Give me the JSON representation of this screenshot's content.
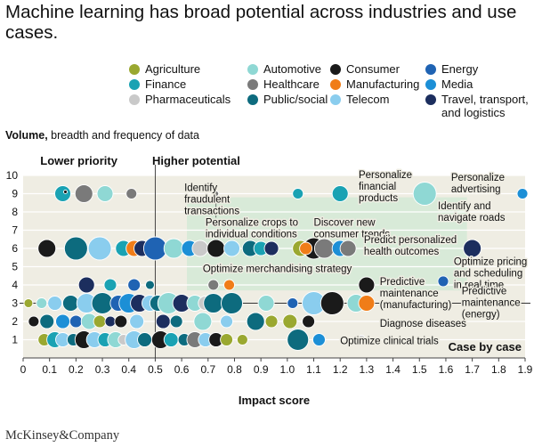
{
  "title": "Machine learning has broad potential across industries and use cases.",
  "footer": "McKinsey&Company",
  "ylabel_bold": "Volume,",
  "ylabel_rest": " breadth and frequency of data",
  "legend": [
    {
      "name": "Agriculture",
      "color": "#9aa830"
    },
    {
      "name": "Automotive",
      "color": "#8fd8d4"
    },
    {
      "name": "Consumer",
      "color": "#1a1a1a"
    },
    {
      "name": "Energy",
      "color": "#1f63b3"
    },
    {
      "name": "Finance",
      "color": "#1aa2b3"
    },
    {
      "name": "Healthcare",
      "color": "#7a7a7a"
    },
    {
      "name": "Manufacturing",
      "color": "#f07d18"
    },
    {
      "name": "Media",
      "color": "#1c8fd6"
    },
    {
      "name": "Pharmaceuticals",
      "color": "#c9c9c9"
    },
    {
      "name": "Public/social",
      "color": "#0d6b7e"
    },
    {
      "name": "Telecom",
      "color": "#8acdee"
    },
    {
      "name": "Travel, transport, and logistics",
      "lines": [
        "Travel, transport,",
        "and logistics"
      ],
      "color": "#1c2e5e"
    }
  ],
  "chart_data": {
    "type": "scatter",
    "title": "Machine learning has broad potential across industries and use cases.",
    "xlabel": "Impact score",
    "ylabel": "Volume, breadth and frequency of data",
    "xlim": [
      0,
      1.9
    ],
    "ylim": [
      0,
      10
    ],
    "xticks": [
      "0",
      "0.1",
      "0.2",
      "0.3",
      "0.4",
      "0.5",
      "0.6",
      "0.7",
      "0.8",
      "0.9",
      "1.0",
      "1.1",
      "1.2",
      "1.3",
      "1.4",
      "1.5",
      "1.6",
      "1.7",
      "1.8",
      "1.9"
    ],
    "yticks": [
      "1",
      "2",
      "3",
      "4",
      "5",
      "6",
      "7",
      "8",
      "9",
      "10"
    ],
    "highlight_region": {
      "x": [
        0.62,
        1.68
      ],
      "y": [
        3.7,
        8.8
      ]
    },
    "divider_x": 0.5,
    "divider_y": 3,
    "quadrants": {
      "top_left": "Lower priority",
      "top_center": "Higher potential",
      "bottom_right": "Case by case"
    },
    "points": [
      {
        "x": 0.08,
        "y": 1,
        "s": 7,
        "c": "Agriculture"
      },
      {
        "x": 0.12,
        "y": 1,
        "s": 9,
        "c": "Finance"
      },
      {
        "x": 0.15,
        "y": 1,
        "s": 8,
        "c": "Telecom"
      },
      {
        "x": 0.19,
        "y": 1,
        "s": 7,
        "c": "Public/social"
      },
      {
        "x": 0.23,
        "y": 1,
        "s": 10,
        "c": "Consumer"
      },
      {
        "x": 0.27,
        "y": 1,
        "s": 9,
        "c": "Telecom"
      },
      {
        "x": 0.31,
        "y": 1,
        "s": 8,
        "c": "Finance"
      },
      {
        "x": 0.35,
        "y": 1,
        "s": 9,
        "c": "Automotive"
      },
      {
        "x": 0.38,
        "y": 1,
        "s": 6,
        "c": "Pharmaceuticals"
      },
      {
        "x": 0.42,
        "y": 1,
        "s": 10,
        "c": "Telecom"
      },
      {
        "x": 0.46,
        "y": 1,
        "s": 8,
        "c": "Public/social"
      },
      {
        "x": 0.52,
        "y": 1,
        "s": 10,
        "c": "Consumer"
      },
      {
        "x": 0.56,
        "y": 1,
        "s": 8,
        "c": "Finance"
      },
      {
        "x": 0.61,
        "y": 1,
        "s": 7,
        "c": "Public/social"
      },
      {
        "x": 0.65,
        "y": 1,
        "s": 9,
        "c": "Healthcare"
      },
      {
        "x": 0.69,
        "y": 1,
        "s": 8,
        "c": "Telecom"
      },
      {
        "x": 0.73,
        "y": 1,
        "s": 8,
        "c": "Consumer"
      },
      {
        "x": 0.77,
        "y": 1,
        "s": 7,
        "c": "Agriculture"
      },
      {
        "x": 0.83,
        "y": 1,
        "s": 6,
        "c": "Agriculture"
      },
      {
        "x": 1.04,
        "y": 1,
        "s": 12,
        "c": "Public/social"
      },
      {
        "x": 1.12,
        "y": 1,
        "s": 7,
        "c": "Media"
      },
      {
        "x": 1.28,
        "y": 1,
        "s": 5,
        "c": "Pharmaceuticals"
      },
      {
        "x": 0.04,
        "y": 2,
        "s": 6,
        "c": "Consumer"
      },
      {
        "x": 0.09,
        "y": 2,
        "s": 8,
        "c": "Public/social"
      },
      {
        "x": 0.15,
        "y": 2,
        "s": 8,
        "c": "Media"
      },
      {
        "x": 0.2,
        "y": 2,
        "s": 7,
        "c": "Energy"
      },
      {
        "x": 0.25,
        "y": 2,
        "s": 9,
        "c": "Automotive"
      },
      {
        "x": 0.29,
        "y": 2,
        "s": 7,
        "c": "Agriculture"
      },
      {
        "x": 0.33,
        "y": 2,
        "s": 6,
        "c": "Travel, transport, and logistics"
      },
      {
        "x": 0.37,
        "y": 2,
        "s": 7,
        "c": "Consumer"
      },
      {
        "x": 0.43,
        "y": 2,
        "s": 8,
        "c": "Telecom"
      },
      {
        "x": 0.53,
        "y": 2,
        "s": 8,
        "c": "Travel, transport, and logistics"
      },
      {
        "x": 0.58,
        "y": 2,
        "s": 7,
        "c": "Public/social"
      },
      {
        "x": 0.68,
        "y": 2,
        "s": 10,
        "c": "Automotive"
      },
      {
        "x": 0.77,
        "y": 2,
        "s": 7,
        "c": "Telecom"
      },
      {
        "x": 0.88,
        "y": 2,
        "s": 10,
        "c": "Public/social"
      },
      {
        "x": 0.94,
        "y": 2,
        "s": 7,
        "c": "Agriculture"
      },
      {
        "x": 1.01,
        "y": 2,
        "s": 8,
        "c": "Agriculture"
      },
      {
        "x": 1.08,
        "y": 2,
        "s": 7,
        "c": "Consumer"
      },
      {
        "x": 0.02,
        "y": 3,
        "s": 5,
        "c": "Agriculture"
      },
      {
        "x": 0.07,
        "y": 3,
        "s": 6,
        "c": "Automotive"
      },
      {
        "x": 0.12,
        "y": 3,
        "s": 8,
        "c": "Telecom"
      },
      {
        "x": 0.18,
        "y": 3,
        "s": 9,
        "c": "Public/social"
      },
      {
        "x": 0.24,
        "y": 3,
        "s": 11,
        "c": "Telecom"
      },
      {
        "x": 0.3,
        "y": 3,
        "s": 12,
        "c": "Public/social"
      },
      {
        "x": 0.36,
        "y": 3,
        "s": 9,
        "c": "Energy"
      },
      {
        "x": 0.4,
        "y": 3,
        "s": 11,
        "c": "Media"
      },
      {
        "x": 0.44,
        "y": 3,
        "s": 10,
        "c": "Travel, transport, and logistics"
      },
      {
        "x": 0.48,
        "y": 3,
        "s": 9,
        "c": "Telecom"
      },
      {
        "x": 0.51,
        "y": 3,
        "s": 9,
        "c": "Public/social"
      },
      {
        "x": 0.55,
        "y": 3,
        "s": 12,
        "c": "Automotive"
      },
      {
        "x": 0.6,
        "y": 3,
        "s": 10,
        "c": "Travel, transport, and logistics"
      },
      {
        "x": 0.65,
        "y": 3,
        "s": 9,
        "c": "Automotive"
      },
      {
        "x": 0.69,
        "y": 3,
        "s": 8,
        "c": "Pharmaceuticals"
      },
      {
        "x": 0.72,
        "y": 3,
        "s": 11,
        "c": "Public/social"
      },
      {
        "x": 0.79,
        "y": 3,
        "s": 12,
        "c": "Public/social"
      },
      {
        "x": 0.92,
        "y": 3,
        "s": 9,
        "c": "Automotive"
      },
      {
        "x": 1.02,
        "y": 3,
        "s": 6,
        "c": "Energy"
      },
      {
        "x": 1.1,
        "y": 3,
        "s": 13,
        "c": "Telecom"
      },
      {
        "x": 1.17,
        "y": 3,
        "s": 13,
        "c": "Consumer"
      },
      {
        "x": 1.26,
        "y": 3,
        "s": 10,
        "c": "Automotive"
      },
      {
        "x": 1.3,
        "y": 3,
        "s": 9,
        "c": "Manufacturing"
      },
      {
        "x": 0.24,
        "y": 4,
        "s": 9,
        "c": "Travel, transport, and logistics"
      },
      {
        "x": 0.33,
        "y": 4,
        "s": 7,
        "c": "Finance"
      },
      {
        "x": 0.42,
        "y": 4,
        "s": 7,
        "c": "Energy"
      },
      {
        "x": 0.48,
        "y": 4,
        "s": 5,
        "c": "Public/social"
      },
      {
        "x": 0.72,
        "y": 4,
        "s": 6,
        "c": "Healthcare"
      },
      {
        "x": 0.78,
        "y": 4,
        "s": 6,
        "c": "Manufacturing"
      },
      {
        "x": 1.3,
        "y": 4,
        "s": 9,
        "c": "Consumer"
      },
      {
        "x": 1.59,
        "y": 4.2,
        "s": 6,
        "c": "Energy"
      },
      {
        "x": 0.09,
        "y": 6,
        "s": 10,
        "c": "Consumer"
      },
      {
        "x": 0.2,
        "y": 6,
        "s": 13,
        "c": "Public/social"
      },
      {
        "x": 0.29,
        "y": 6,
        "s": 13,
        "c": "Telecom"
      },
      {
        "x": 0.38,
        "y": 6,
        "s": 9,
        "c": "Finance"
      },
      {
        "x": 0.42,
        "y": 6,
        "s": 9,
        "c": "Manufacturing"
      },
      {
        "x": 0.45,
        "y": 6,
        "s": 9,
        "c": "Travel, transport, and logistics"
      },
      {
        "x": 0.5,
        "y": 6,
        "s": 13,
        "c": "Energy"
      },
      {
        "x": 0.57,
        "y": 6,
        "s": 11,
        "c": "Automotive"
      },
      {
        "x": 0.63,
        "y": 6,
        "s": 9,
        "c": "Media"
      },
      {
        "x": 0.67,
        "y": 6,
        "s": 9,
        "c": "Pharmaceuticals"
      },
      {
        "x": 0.73,
        "y": 6,
        "s": 10,
        "c": "Consumer"
      },
      {
        "x": 0.79,
        "y": 6,
        "s": 9,
        "c": "Telecom"
      },
      {
        "x": 0.86,
        "y": 6,
        "s": 9,
        "c": "Public/social"
      },
      {
        "x": 0.9,
        "y": 6,
        "s": 8,
        "c": "Finance"
      },
      {
        "x": 0.94,
        "y": 6,
        "s": 8,
        "c": "Travel, transport, and logistics"
      },
      {
        "x": 1.05,
        "y": 6,
        "s": 9,
        "c": "Agriculture"
      },
      {
        "x": 1.1,
        "y": 6,
        "s": 12,
        "c": "Consumer"
      },
      {
        "x": 1.07,
        "y": 6,
        "s": 7,
        "c": "Manufacturing"
      },
      {
        "x": 1.14,
        "y": 6,
        "s": 11,
        "c": "Healthcare"
      },
      {
        "x": 1.2,
        "y": 6,
        "s": 9,
        "c": "Media"
      },
      {
        "x": 1.23,
        "y": 6,
        "s": 9,
        "c": "Healthcare"
      },
      {
        "x": 1.7,
        "y": 6,
        "s": 10,
        "c": "Travel, transport, and logistics"
      },
      {
        "x": 0.15,
        "y": 9,
        "s": 9,
        "c": "Finance"
      },
      {
        "x": 0.16,
        "y": 9.1,
        "s": 2,
        "c": "Consumer"
      },
      {
        "x": 0.23,
        "y": 9,
        "s": 10,
        "c": "Healthcare"
      },
      {
        "x": 0.31,
        "y": 9,
        "s": 9,
        "c": "Automotive"
      },
      {
        "x": 0.41,
        "y": 9,
        "s": 6,
        "c": "Healthcare"
      },
      {
        "x": 0.73,
        "y": 9,
        "s": 3,
        "c": "Healthcare"
      },
      {
        "x": 1.04,
        "y": 9,
        "s": 6,
        "c": "Finance"
      },
      {
        "x": 1.2,
        "y": 9,
        "s": 9,
        "c": "Finance"
      },
      {
        "x": 1.52,
        "y": 9,
        "s": 13,
        "c": "Automotive"
      },
      {
        "x": 1.89,
        "y": 9,
        "s": 6,
        "c": "Media"
      }
    ],
    "annotations": [
      {
        "lines": [
          "Identify",
          "fraudulent",
          "transactions"
        ],
        "px": 0.73,
        "py": 9.0,
        "tx": 0.61,
        "ty": 9.15,
        "dir": "up",
        "anchor": "start"
      },
      {
        "lines": [
          "Personalize",
          "financial",
          "products"
        ],
        "px": 1.2,
        "py": 9.0,
        "tx": 1.27,
        "ty": 9.85,
        "dir": "none",
        "anchor": "start"
      },
      {
        "lines": [
          "Personalize",
          "advertising"
        ],
        "px": 1.89,
        "py": 9.0,
        "tx": 1.62,
        "ty": 9.7,
        "dir": "none",
        "anchor": "start"
      },
      {
        "lines": [
          "Identify and",
          "navigate roads"
        ],
        "px": 1.52,
        "py": 9.0,
        "tx": 1.57,
        "ty": 8.15,
        "dir": "none",
        "anchor": "start"
      },
      {
        "lines": [
          "Personalize crops to",
          "individual conditions"
        ],
        "px": 1.05,
        "py": 6.0,
        "tx": 0.69,
        "ty": 7.25,
        "dir": "none",
        "anchor": "start"
      },
      {
        "lines": [
          "Discover new",
          "consumer trends"
        ],
        "px": 1.1,
        "py": 6.0,
        "tx": 1.1,
        "ty": 7.25,
        "dir": "none",
        "anchor": "start"
      },
      {
        "lines": [
          "Predict personalized",
          "health outcomes"
        ],
        "px": 1.23,
        "py": 6.0,
        "tx": 1.29,
        "ty": 6.3,
        "dir": "none",
        "anchor": "start"
      },
      {
        "lines": [
          "Optimize pricing",
          "and scheduling",
          "in real time"
        ],
        "px": 1.7,
        "py": 6.0,
        "tx": 1.63,
        "ty": 5.1,
        "dir": "none",
        "anchor": "start"
      },
      {
        "lines": [
          "Optimize merchandising strategy"
        ],
        "px": 1.18,
        "py": 4.3,
        "tx": 0.68,
        "ty": 4.7,
        "dir": "none",
        "anchor": "start"
      },
      {
        "lines": [
          "Predictive",
          "maintenance",
          "(manufacturing)"
        ],
        "px": 1.3,
        "py": 4.0,
        "tx": 1.35,
        "ty": 4.0,
        "dir": "none",
        "anchor": "start"
      },
      {
        "lines": [
          "Predictive",
          "maintenance",
          "(energy)"
        ],
        "px": 1.59,
        "py": 4.2,
        "tx": 1.66,
        "ty": 3.5,
        "dir": "none",
        "anchor": "start"
      },
      {
        "lines": [
          "Diagnose diseases"
        ],
        "px": 1.38,
        "py": 2.5,
        "tx": 1.35,
        "ty": 1.7,
        "dir": "none",
        "anchor": "start"
      },
      {
        "lines": [
          "Optimize clinical trials"
        ],
        "px": 1.28,
        "py": 1.0,
        "tx": 1.2,
        "ty": 0.75,
        "dir": "none",
        "anchor": "start"
      }
    ]
  }
}
